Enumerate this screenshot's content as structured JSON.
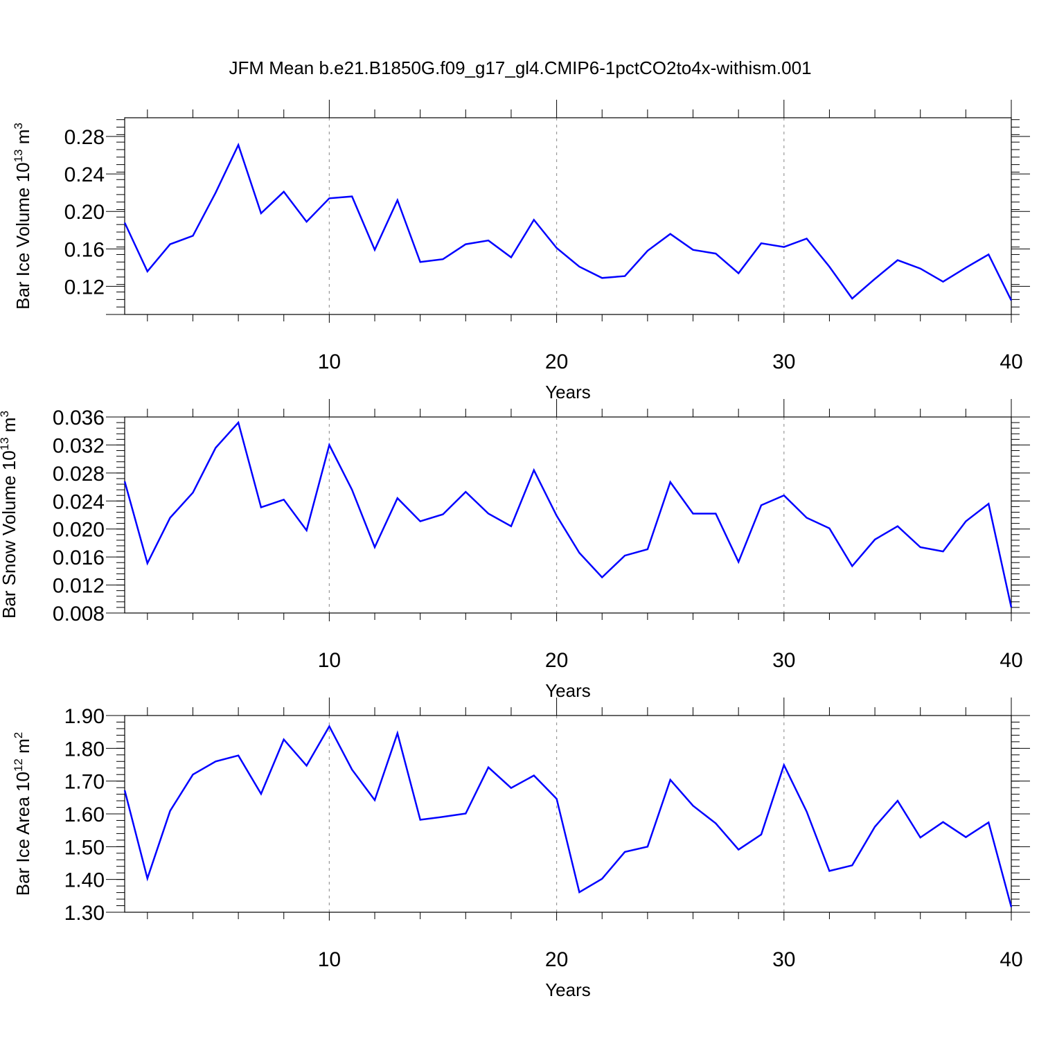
{
  "figure": {
    "title": "JFM Mean b.e21.B1850G.f09_g17_gl4.CMIP6-1pctCO2to4x-withism.001"
  },
  "chart_data": [
    {
      "type": "line",
      "xlabel": "Years",
      "ylabel": {
        "text": "Bar Ice Volume 10",
        "sup": "13",
        "unit": " m",
        "unit_sup": "3"
      },
      "xlim": [
        1,
        40
      ],
      "ylim": [
        0.09,
        0.3
      ],
      "xticks": [
        10,
        20,
        30,
        40
      ],
      "xtick_labels": [
        "10",
        "20",
        "30",
        "40"
      ],
      "yticks": [
        0.12,
        0.16,
        0.2,
        0.24,
        0.28
      ],
      "ytick_labels": [
        "0.12",
        "0.16",
        "0.20",
        "0.24",
        "0.28"
      ],
      "y_minor_step": 0.008,
      "grid": "vertical dashed at major x ticks",
      "color": "#0000ff",
      "x": [
        1,
        2,
        3,
        4,
        5,
        6,
        7,
        8,
        9,
        10,
        11,
        12,
        13,
        14,
        15,
        16,
        17,
        18,
        19,
        20,
        21,
        22,
        23,
        24,
        25,
        26,
        27,
        28,
        29,
        30,
        31,
        32,
        33,
        34,
        35,
        36,
        37,
        38,
        39,
        40
      ],
      "values": [
        0.188,
        0.136,
        0.165,
        0.174,
        0.22,
        0.271,
        0.198,
        0.221,
        0.189,
        0.214,
        0.216,
        0.159,
        0.212,
        0.146,
        0.149,
        0.165,
        0.169,
        0.151,
        0.191,
        0.161,
        0.141,
        0.129,
        0.131,
        0.158,
        0.176,
        0.159,
        0.155,
        0.134,
        0.166,
        0.162,
        0.171,
        0.141,
        0.107,
        0.128,
        0.148,
        0.139,
        0.125,
        0.14,
        0.154,
        0.105
      ]
    },
    {
      "type": "line",
      "xlabel": "Years",
      "ylabel": {
        "text": "Bar Snow Volume 10",
        "sup": "13",
        "unit": " m",
        "unit_sup": "3"
      },
      "xlim": [
        1,
        40
      ],
      "ylim": [
        0.008,
        0.036
      ],
      "xticks": [
        10,
        20,
        30,
        40
      ],
      "xtick_labels": [
        "10",
        "20",
        "30",
        "40"
      ],
      "yticks": [
        0.008,
        0.012,
        0.016,
        0.02,
        0.024,
        0.028,
        0.032,
        0.036
      ],
      "ytick_labels": [
        "0.008",
        "0.012",
        "0.016",
        "0.020",
        "0.024",
        "0.028",
        "0.032",
        "0.036"
      ],
      "y_minor_step": 0.0008,
      "grid": "vertical dashed at major x ticks",
      "color": "#0000ff",
      "x": [
        1,
        2,
        3,
        4,
        5,
        6,
        7,
        8,
        9,
        10,
        11,
        12,
        13,
        14,
        15,
        16,
        17,
        18,
        19,
        20,
        21,
        22,
        23,
        24,
        25,
        26,
        27,
        28,
        29,
        30,
        31,
        32,
        33,
        34,
        35,
        36,
        37,
        38,
        39,
        40
      ],
      "values": [
        0.0268,
        0.0151,
        0.0216,
        0.0252,
        0.0316,
        0.0352,
        0.0231,
        0.0242,
        0.0198,
        0.032,
        0.0256,
        0.0174,
        0.0244,
        0.0211,
        0.0221,
        0.0253,
        0.0222,
        0.0204,
        0.0284,
        0.0219,
        0.0166,
        0.0131,
        0.0162,
        0.0171,
        0.0267,
        0.0222,
        0.0222,
        0.0153,
        0.0234,
        0.0248,
        0.0216,
        0.0201,
        0.0147,
        0.0185,
        0.0204,
        0.0174,
        0.0168,
        0.0211,
        0.0236,
        0.0088
      ]
    },
    {
      "type": "line",
      "xlabel": "Years",
      "ylabel": {
        "text": "Bar Ice Area 10",
        "sup": "12",
        "unit": " m",
        "unit_sup": "2"
      },
      "xlim": [
        1,
        40
      ],
      "ylim": [
        1.3,
        1.9
      ],
      "xticks": [
        10,
        20,
        30,
        40
      ],
      "xtick_labels": [
        "10",
        "20",
        "30",
        "40"
      ],
      "yticks": [
        1.3,
        1.4,
        1.5,
        1.6,
        1.7,
        1.8,
        1.9
      ],
      "ytick_labels": [
        "1.30",
        "1.40",
        "1.50",
        "1.60",
        "1.70",
        "1.80",
        "1.90"
      ],
      "y_minor_step": 0.02,
      "grid": "vertical dashed at major x ticks",
      "color": "#0000ff",
      "x": [
        1,
        2,
        3,
        4,
        5,
        6,
        7,
        8,
        9,
        10,
        11,
        12,
        13,
        14,
        15,
        16,
        17,
        18,
        19,
        20,
        21,
        22,
        23,
        24,
        25,
        26,
        27,
        28,
        29,
        30,
        31,
        32,
        33,
        34,
        35,
        36,
        37,
        38,
        39,
        40
      ],
      "values": [
        1.672,
        1.403,
        1.609,
        1.72,
        1.76,
        1.778,
        1.661,
        1.827,
        1.747,
        1.867,
        1.735,
        1.642,
        1.846,
        1.582,
        1.591,
        1.601,
        1.742,
        1.679,
        1.717,
        1.646,
        1.361,
        1.402,
        1.484,
        1.5,
        1.704,
        1.625,
        1.571,
        1.491,
        1.537,
        1.749,
        1.607,
        1.426,
        1.443,
        1.561,
        1.64,
        1.528,
        1.575,
        1.529,
        1.574,
        1.316
      ]
    }
  ]
}
